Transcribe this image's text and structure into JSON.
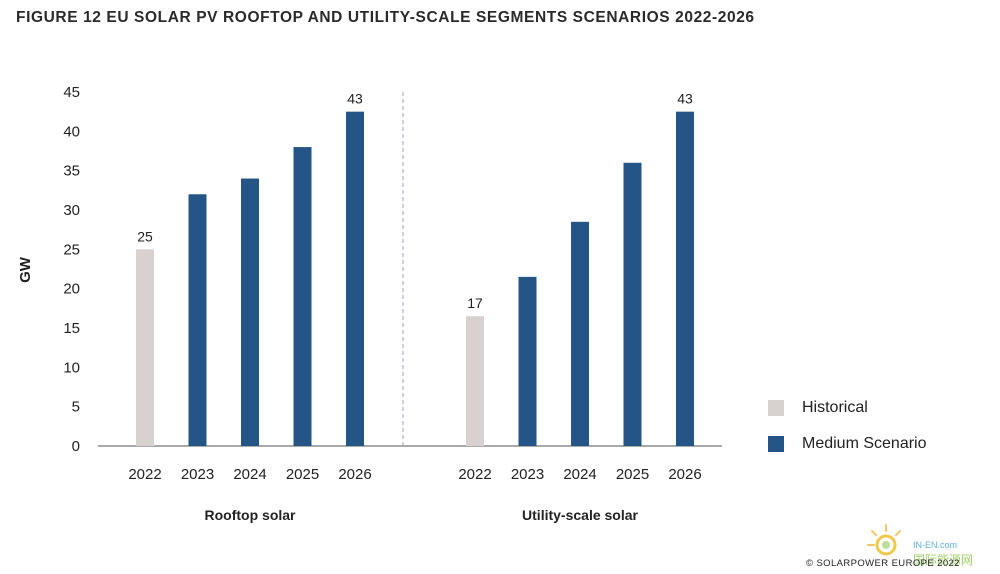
{
  "title": "FIGURE 12 EU SOLAR PV ROOFTOP AND UTILITY-SCALE SEGMENTS SCENARIOS 2022-2026",
  "credit": "© SOLARPOWER EUROPE 2022",
  "watermark": {
    "line1": "IN-EN.com",
    "line2": "国际能源网"
  },
  "colors": {
    "historical": "#d8d1cf",
    "medium": "#255487",
    "divider": "#8fa6c4",
    "axis": "#333333"
  },
  "chart_data": {
    "type": "bar",
    "ylabel": "GW",
    "ylim": [
      0,
      45
    ],
    "yticks": [
      0,
      5,
      10,
      15,
      20,
      25,
      30,
      35,
      40,
      45
    ],
    "grid": false,
    "legend": {
      "placement": "right",
      "entries": [
        {
          "label": "Historical",
          "color": "#d8d1cf"
        },
        {
          "label": "Medium Scenario",
          "color": "#255487"
        }
      ]
    },
    "groups": [
      {
        "name": "Rooftop solar",
        "categories": [
          "2022",
          "2023",
          "2024",
          "2025",
          "2026"
        ],
        "values": [
          25,
          32,
          34,
          38,
          42.5
        ],
        "series_type": [
          "Historical",
          "Medium Scenario",
          "Medium Scenario",
          "Medium Scenario",
          "Medium Scenario"
        ],
        "data_labels": [
          "25",
          "",
          "",
          "",
          "43"
        ]
      },
      {
        "name": "Utility-scale solar",
        "categories": [
          "2022",
          "2023",
          "2024",
          "2025",
          "2026"
        ],
        "values": [
          16.5,
          21.5,
          28.5,
          36,
          42.5
        ],
        "series_type": [
          "Historical",
          "Medium Scenario",
          "Medium Scenario",
          "Medium Scenario",
          "Medium Scenario"
        ],
        "data_labels": [
          "17",
          "",
          "",
          "",
          "43"
        ]
      }
    ]
  }
}
